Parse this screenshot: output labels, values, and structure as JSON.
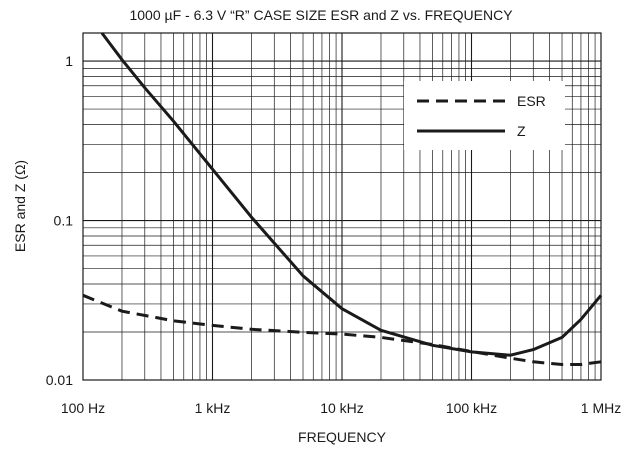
{
  "chart_data": {
    "type": "line",
    "title": "1000 µF - 6.3 V “R” CASE SIZE ESR and Z vs. FREQUENCY",
    "xlabel": "FREQUENCY",
    "ylabel": "ESR and Z (Ω)",
    "x_scale": "log",
    "y_scale": "log",
    "xlim": [
      100,
      1000000
    ],
    "ylim": [
      0.01,
      1.5
    ],
    "grid": true,
    "legend_position": "top-right",
    "x_ticks": [
      {
        "value": 100,
        "label": "100 Hz"
      },
      {
        "value": 1000,
        "label": "1 kHz"
      },
      {
        "value": 10000,
        "label": "10 kHz"
      },
      {
        "value": 100000,
        "label": "100 kHz"
      },
      {
        "value": 1000000,
        "label": "1 MHz"
      }
    ],
    "y_ticks": [
      {
        "value": 0.01,
        "label": "0.01"
      },
      {
        "value": 0.1,
        "label": "0.1"
      },
      {
        "value": 1,
        "label": "1"
      }
    ],
    "series": [
      {
        "name": "ESR",
        "style": "dashed",
        "color": "#1a1a1a",
        "points": [
          [
            100,
            0.034
          ],
          [
            200,
            0.027
          ],
          [
            500,
            0.0235
          ],
          [
            1000,
            0.022
          ],
          [
            2000,
            0.0208
          ],
          [
            5000,
            0.0199
          ],
          [
            10000,
            0.0194
          ],
          [
            20000,
            0.0185
          ],
          [
            50000,
            0.0167
          ],
          [
            100000,
            0.0151
          ],
          [
            200000,
            0.0137
          ],
          [
            300000,
            0.013
          ],
          [
            500000,
            0.0125
          ],
          [
            700000,
            0.0125
          ],
          [
            1000000,
            0.013
          ]
        ]
      },
      {
        "name": "Z",
        "style": "solid",
        "color": "#1a1a1a",
        "points": [
          [
            140,
            1.5
          ],
          [
            200,
            1.02
          ],
          [
            300,
            0.68
          ],
          [
            500,
            0.42
          ],
          [
            1000,
            0.21
          ],
          [
            2000,
            0.105
          ],
          [
            5000,
            0.045
          ],
          [
            10000,
            0.028
          ],
          [
            20000,
            0.0205
          ],
          [
            50000,
            0.0165
          ],
          [
            100000,
            0.015
          ],
          [
            200000,
            0.0143
          ],
          [
            300000,
            0.0155
          ],
          [
            500000,
            0.0185
          ],
          [
            700000,
            0.024
          ],
          [
            1000000,
            0.034
          ]
        ]
      }
    ]
  }
}
